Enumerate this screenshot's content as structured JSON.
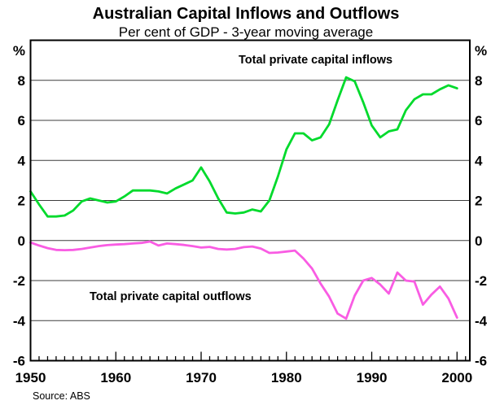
{
  "title": "Australian Capital Inflows and Outflows",
  "subtitle": "Per cent of GDP - 3-year moving average",
  "source": "Source: ABS",
  "axis": {
    "unit_percent": "%"
  },
  "chart_data": {
    "type": "line",
    "title": "Australian Capital Inflows and Outflows",
    "subtitle": "Per cent of GDP - 3-year moving average",
    "xlabel": "",
    "ylabel": "% of GDP",
    "xlim": [
      1950,
      2001.5
    ],
    "ylim": [
      -6,
      10
    ],
    "yticks": [
      -6,
      -4,
      -2,
      0,
      2,
      4,
      6,
      8
    ],
    "xticks_labeled": [
      1950,
      1960,
      1970,
      1980,
      1990,
      2000
    ],
    "xticks_minor_every": 1,
    "grid": "horizontal",
    "legend_position": "inline-labels",
    "x": [
      1950,
      1951,
      1952,
      1953,
      1954,
      1955,
      1956,
      1957,
      1958,
      1959,
      1960,
      1961,
      1962,
      1963,
      1964,
      1965,
      1966,
      1967,
      1968,
      1969,
      1970,
      1971,
      1972,
      1973,
      1974,
      1975,
      1976,
      1977,
      1978,
      1979,
      1980,
      1981,
      1982,
      1983,
      1984,
      1985,
      1986,
      1987,
      1988,
      1989,
      1990,
      1991,
      1992,
      1993,
      1994,
      1995,
      1996,
      1997,
      1998,
      1999,
      2000
    ],
    "series": [
      {
        "name": "Total private capital inflows",
        "color": "#00da2c",
        "values": [
          2.45,
          1.8,
          1.2,
          1.2,
          1.25,
          1.5,
          1.95,
          2.1,
          2.0,
          1.9,
          1.95,
          2.2,
          2.5,
          2.5,
          2.5,
          2.45,
          2.35,
          2.6,
          2.8,
          3.0,
          3.65,
          2.95,
          2.1,
          1.4,
          1.35,
          1.4,
          1.55,
          1.45,
          2.0,
          3.2,
          4.55,
          5.35,
          5.35,
          5.0,
          5.15,
          5.8,
          7.0,
          8.15,
          7.95,
          6.9,
          5.75,
          5.15,
          5.45,
          5.55,
          6.5,
          7.05,
          7.3,
          7.3,
          7.55,
          7.75,
          7.6
        ]
      },
      {
        "name": "Total private capital outflows",
        "color": "#f95ce3",
        "values": [
          -0.1,
          -0.25,
          -0.38,
          -0.47,
          -0.48,
          -0.47,
          -0.42,
          -0.35,
          -0.28,
          -0.23,
          -0.2,
          -0.18,
          -0.15,
          -0.12,
          -0.05,
          -0.25,
          -0.15,
          -0.18,
          -0.22,
          -0.28,
          -0.35,
          -0.32,
          -0.42,
          -0.45,
          -0.42,
          -0.33,
          -0.3,
          -0.4,
          -0.62,
          -0.6,
          -0.55,
          -0.5,
          -0.9,
          -1.4,
          -2.15,
          -2.8,
          -3.65,
          -3.9,
          -2.75,
          -2.0,
          -1.87,
          -2.2,
          -2.65,
          -1.6,
          -2.0,
          -2.05,
          -3.2,
          -2.7,
          -2.3,
          -2.9,
          -3.85
        ]
      }
    ]
  }
}
